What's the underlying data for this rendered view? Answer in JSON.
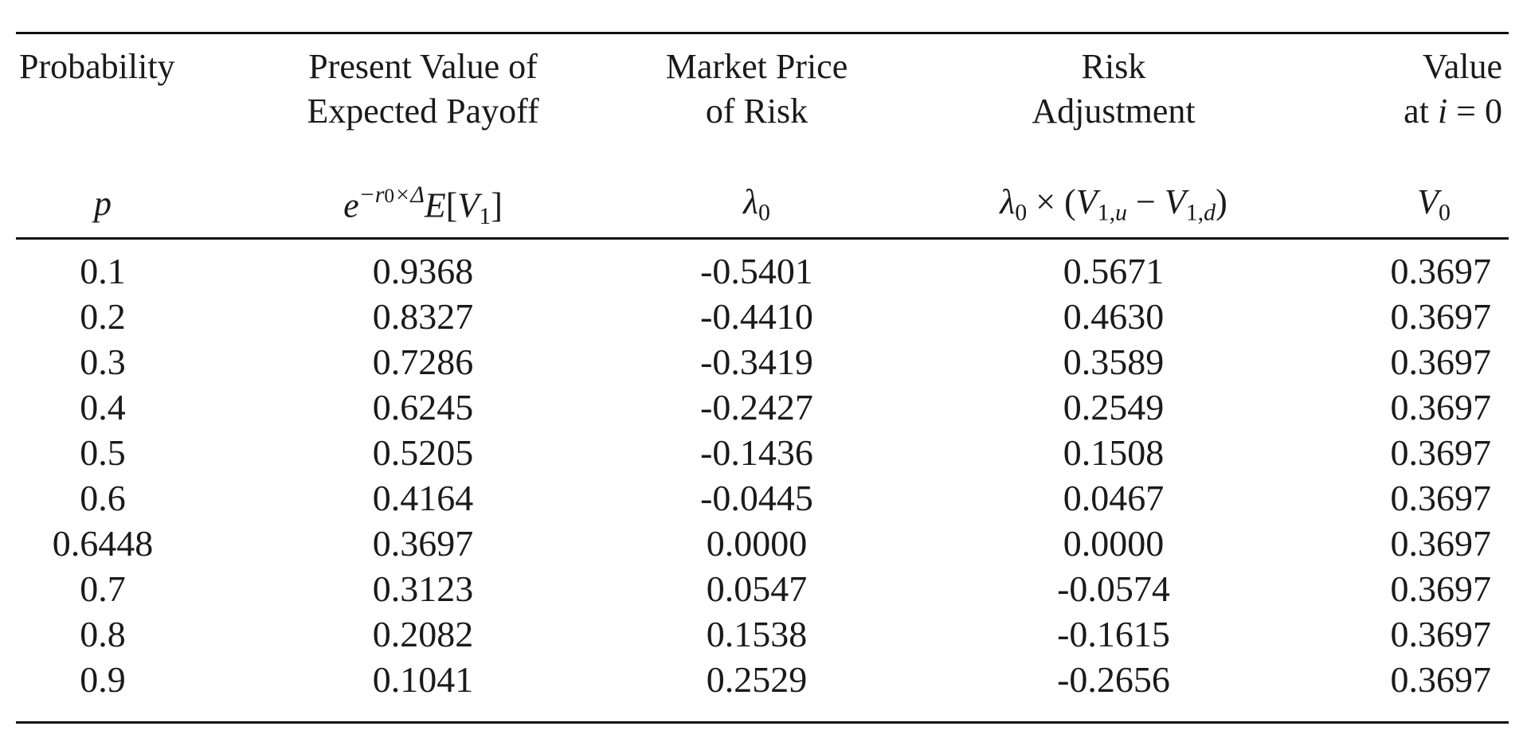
{
  "table": {
    "headers": {
      "probability": "Probability",
      "pv_line1": "Present Value of",
      "pv_line2": "Expected Payoff",
      "mpr_line1": "Market Price",
      "mpr_line2": "of Risk",
      "ra_line1": "Risk",
      "ra_line2": "Adjustment",
      "val_line1": "Value",
      "val_line2_prefix": "at"
    },
    "symbols": {
      "p": "p",
      "pv": "e^{-r0×Δ} E[V1]",
      "mpr": "λ0",
      "ra": "λ0 × (V1,u − V1,d)",
      "v0": "V0",
      "val_eq": "i = 0"
    },
    "rows": [
      [
        "0.1",
        "0.9368",
        "-0.5401",
        "0.5671",
        "0.3697"
      ],
      [
        "0.2",
        "0.8327",
        "-0.4410",
        "0.4630",
        "0.3697"
      ],
      [
        "0.3",
        "0.7286",
        "-0.3419",
        "0.3589",
        "0.3697"
      ],
      [
        "0.4",
        "0.6245",
        "-0.2427",
        "0.2549",
        "0.3697"
      ],
      [
        "0.5",
        "0.5205",
        "-0.1436",
        "0.1508",
        "0.3697"
      ],
      [
        "0.6",
        "0.4164",
        "-0.0445",
        "0.0467",
        "0.3697"
      ],
      [
        "0.6448",
        "0.3697",
        "0.0000",
        "0.0000",
        "0.3697"
      ],
      [
        "0.7",
        "0.3123",
        "0.0547",
        "-0.0574",
        "0.3697"
      ],
      [
        "0.8",
        "0.2082",
        "0.1538",
        "-0.1615",
        "0.3697"
      ],
      [
        "0.9",
        "0.1041",
        "0.2529",
        "-0.2656",
        "0.3697"
      ]
    ]
  }
}
